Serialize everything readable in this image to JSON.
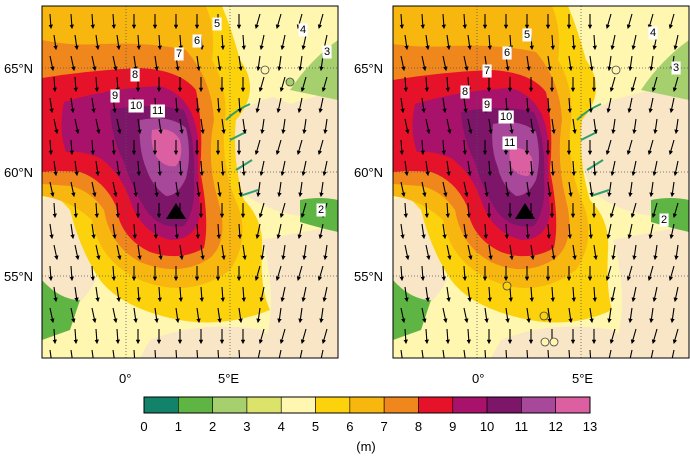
{
  "panels": [
    {
      "id": "left",
      "lat_labels": [
        "65°N",
        "60°N",
        "55°N"
      ],
      "lon_labels": [
        "0°",
        "5°E"
      ],
      "contour_labels": [
        "2",
        "3",
        "4",
        "5",
        "6",
        "7",
        "8",
        "9",
        "10",
        "11"
      ],
      "marker": "black-triangle"
    },
    {
      "id": "right",
      "lat_labels": [
        "65°N",
        "60°N",
        "55°N"
      ],
      "lon_labels": [
        "0°",
        "5°E"
      ],
      "contour_labels": [
        "2",
        "3",
        "4",
        "5",
        "6",
        "7",
        "8",
        "9",
        "10",
        "11"
      ],
      "marker": "black-triangle"
    }
  ],
  "colorbar": {
    "ticks": [
      "0",
      "1",
      "2",
      "3",
      "4",
      "5",
      "6",
      "7",
      "8",
      "9",
      "10",
      "11",
      "12",
      "13"
    ],
    "unit": "(m)",
    "colors": [
      "#12836a",
      "#5fb544",
      "#a6cf6d",
      "#dce36b",
      "#fff6b0",
      "#fbd20c",
      "#f8b70f",
      "#f0871c",
      "#e5122a",
      "#a8126b",
      "#7d1568",
      "#a8489a",
      "#dc5fa2"
    ]
  },
  "colors": {
    "land": "#f8e6c7",
    "coast_green": "#2f9e6e",
    "grid": "#555555"
  }
}
